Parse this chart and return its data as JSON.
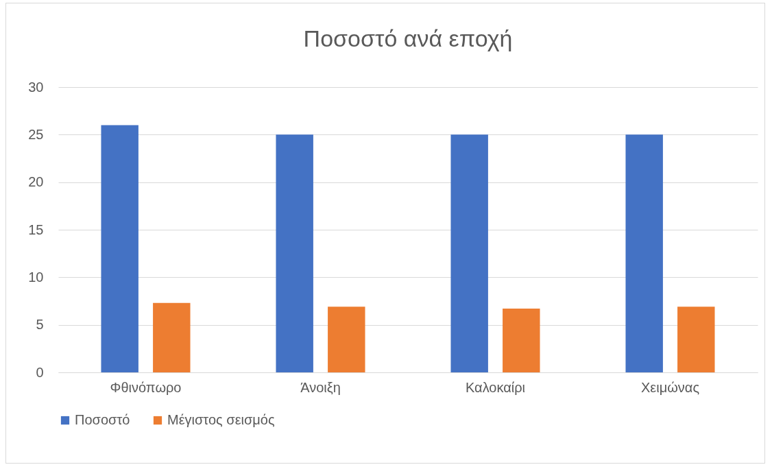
{
  "chart_data": {
    "type": "bar",
    "title": "Ποσοστό ανά εποχή",
    "categories": [
      "Φθινόπωρο",
      "Άνοιξη",
      "Καλοκαίρι",
      "Χειμώνας"
    ],
    "series": [
      {
        "name": "Ποσοστό",
        "color": "#4472c4",
        "values": [
          26,
          25,
          25,
          25
        ]
      },
      {
        "name": "Μέγιστος σεισμός",
        "color": "#ed7d31",
        "values": [
          7.3,
          6.9,
          6.7,
          6.9
        ]
      }
    ],
    "ylim": [
      0,
      30
    ],
    "yticks": [
      0,
      5,
      10,
      15,
      20,
      25,
      30
    ],
    "grid": "y",
    "legend": "bottom"
  }
}
